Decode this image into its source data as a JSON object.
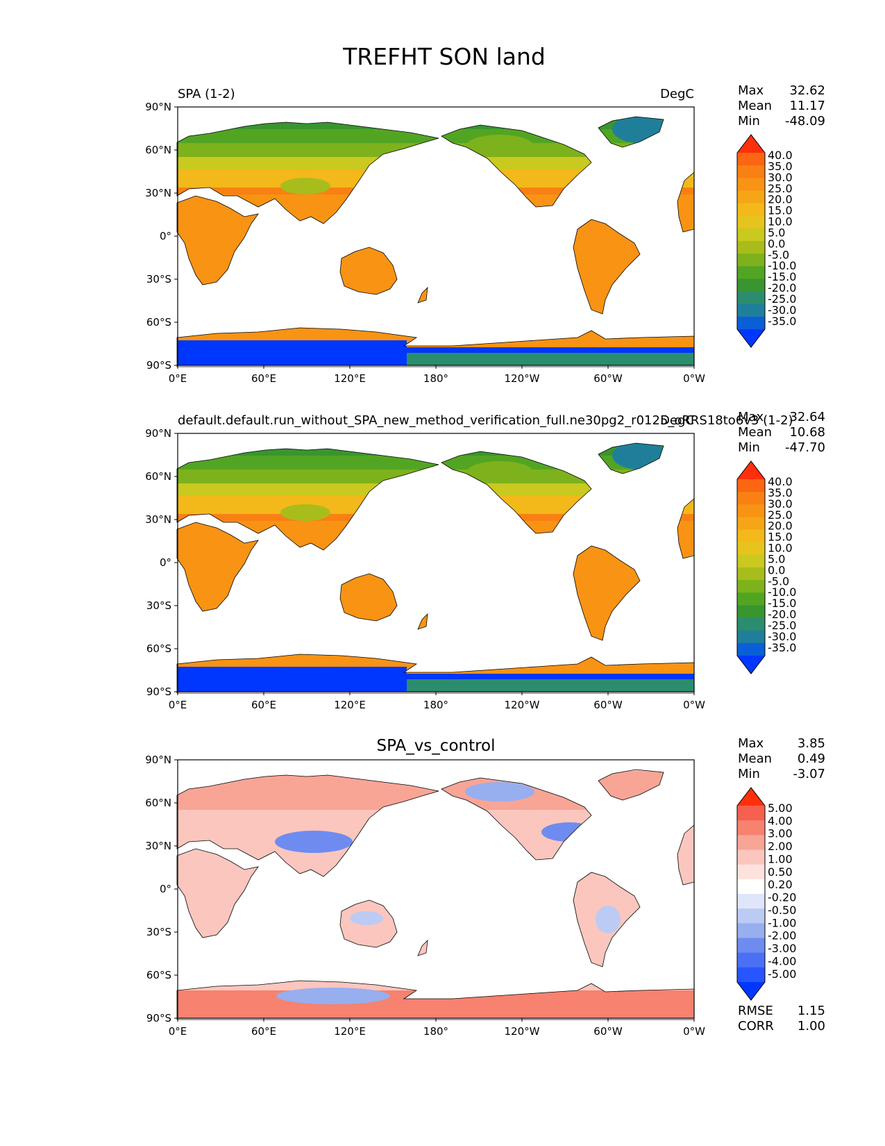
{
  "figure": {
    "title": "TREFHT SON land"
  },
  "axes": {
    "lat_ticks": [
      "90°N",
      "60°N",
      "30°N",
      "0°",
      "30°S",
      "60°S",
      "90°S"
    ],
    "lon_ticks": [
      "0°E",
      "60°E",
      "120°E",
      "180°",
      "120°W",
      "60°W",
      "0°W"
    ]
  },
  "colors": {
    "temperature_scale": [
      "#0037ff",
      "#0a5fd8",
      "#1f7f9a",
      "#2b8d6e",
      "#38952f",
      "#52a522",
      "#7db21c",
      "#a8bd1c",
      "#c9c91f",
      "#e6c41d",
      "#f3b81a",
      "#f6a516",
      "#f89314",
      "#f98013",
      "#fa6611",
      "#ff2f0c"
    ],
    "difference_scale": [
      "#0037ff",
      "#2755ff",
      "#4a70f6",
      "#6e8cf0",
      "#97aeef",
      "#bccbf4",
      "#dfe6fa",
      "#ffffff",
      "#fde2de",
      "#fbc6bd",
      "#f8a596",
      "#f6826f",
      "#f6604e",
      "#ff2f0c"
    ]
  },
  "panels": [
    {
      "id": "test",
      "left_title": "SPA (1-2)",
      "center_title": "",
      "right_title": "DegC",
      "stats": {
        "max_label": "Max",
        "max": "32.62",
        "mean_label": "Mean",
        "mean": "11.17",
        "min_label": "Min",
        "min": "-48.09"
      },
      "colorbar_labels": [
        "40.0",
        "35.0",
        "30.0",
        "25.0",
        "20.0",
        "15.0",
        "10.0",
        "5.0",
        "0.0",
        "-5.0",
        "-10.0",
        "-15.0",
        "-20.0",
        "-25.0",
        "-30.0",
        "-35.0"
      ]
    },
    {
      "id": "reference",
      "left_title": "default.default.run_without_SPA_new_method_verification_full.ne30pg2_r0125_oRRS18to6v3 (1-2)",
      "center_title": "",
      "right_title": "DegC",
      "stats": {
        "max_label": "Max",
        "max": "32.64",
        "mean_label": "Mean",
        "mean": "10.68",
        "min_label": "Min",
        "min": "-47.70"
      },
      "colorbar_labels": [
        "40.0",
        "35.0",
        "30.0",
        "25.0",
        "20.0",
        "15.0",
        "10.0",
        "5.0",
        "0.0",
        "-5.0",
        "-10.0",
        "-15.0",
        "-20.0",
        "-25.0",
        "-30.0",
        "-35.0"
      ]
    },
    {
      "id": "difference",
      "left_title": "",
      "center_title": "SPA_vs_control",
      "right_title": "",
      "stats": {
        "max_label": "Max",
        "max": "3.85",
        "mean_label": "Mean",
        "mean": "0.49",
        "min_label": "Min",
        "min": "-3.07"
      },
      "colorbar_labels": [
        "5.00",
        "4.00",
        "3.00",
        "2.00",
        "1.00",
        "0.50",
        "0.20",
        "-0.20",
        "-0.50",
        "-1.00",
        "-2.00",
        "-3.00",
        "-4.00",
        "-5.00"
      ],
      "extra_stats": {
        "rmse_label": "RMSE",
        "rmse": "1.15",
        "corr_label": "CORR",
        "corr": "1.00"
      }
    }
  ]
}
